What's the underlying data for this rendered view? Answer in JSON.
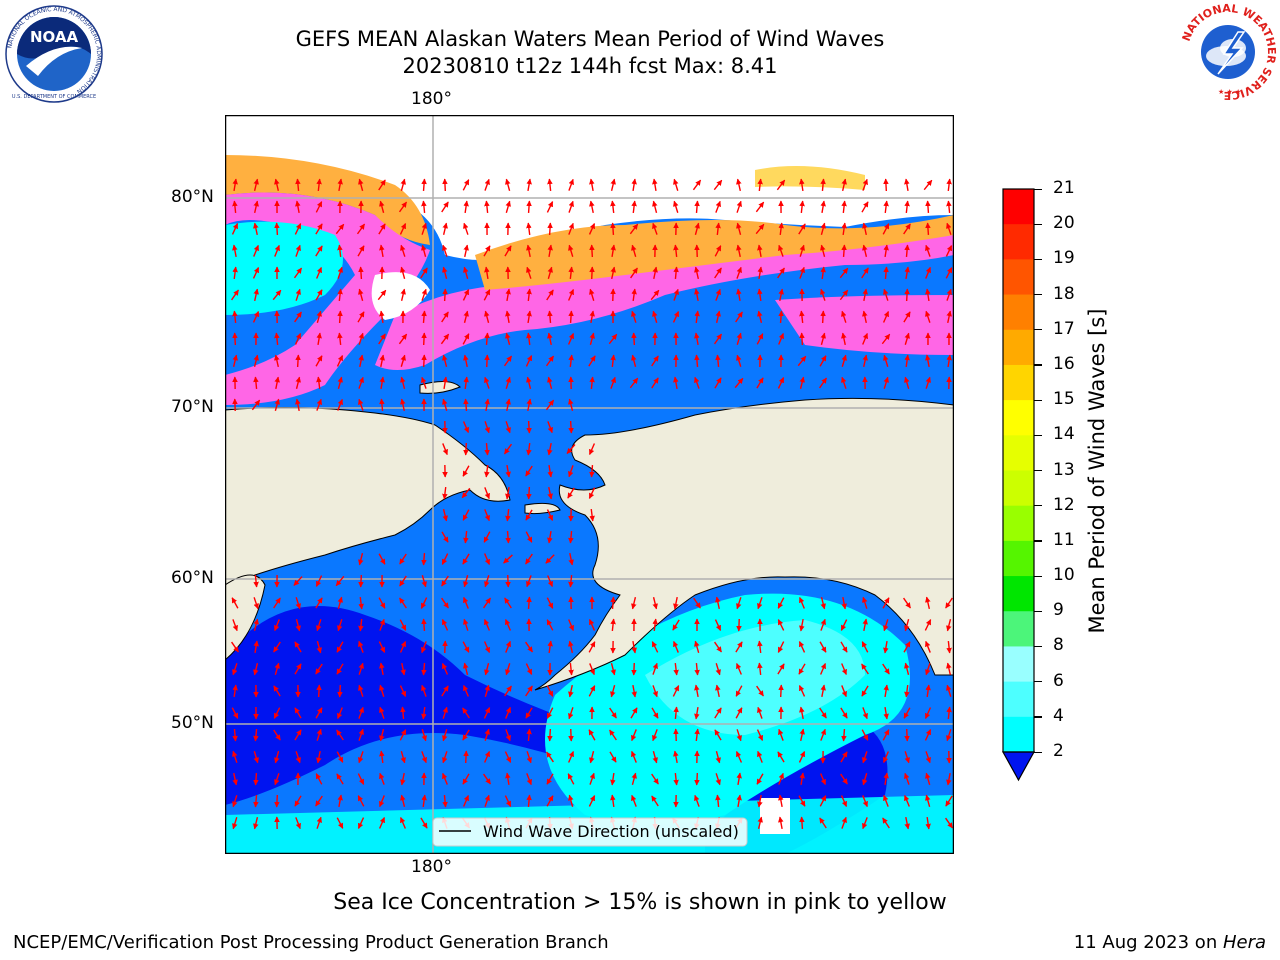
{
  "header": {
    "title_line1": "GEFS MEAN Alaskan Waters Mean Period of Wind Waves",
    "title_line2": "20230810 t12z 144h fcst   Max: 8.41"
  },
  "logos": {
    "left": {
      "name": "NOAA",
      "ring_text": "NATIONAL OCEANIC AND ATMOSPHERIC ADMINISTRATION",
      "bottom_text": "U.S. DEPARTMENT OF COMMERCE"
    },
    "right": {
      "ring_text": "NATIONAL WEATHER SERVICE"
    }
  },
  "map": {
    "grid_labels": {
      "lon_top": "180°",
      "lon_bottom": "180°",
      "lat": [
        "80°N",
        "70°N",
        "60°N",
        "50°N"
      ]
    },
    "legend_label": "Wind Wave Direction (unscaled)",
    "colors": {
      "land": "#efeddc",
      "sea_low": "#0a78ff",
      "sea_deep": "#0014f0",
      "sea_cyan": "#00ffff",
      "sea_light": "#4dffff",
      "ice_pink": "#ff66e6",
      "ice_orange": "#ffb040",
      "ice_yellow": "#ffd95e",
      "arrow": "#ff0000"
    }
  },
  "colorbar": {
    "label": "Mean Period of Wind Waves [s]",
    "ticks": [
      "21",
      "20",
      "19",
      "18",
      "17",
      "16",
      "15",
      "14",
      "13",
      "12",
      "11",
      "10",
      "9",
      "8",
      "6",
      "4",
      "2"
    ],
    "colors": [
      "#ff0000",
      "#ff2a00",
      "#ff5500",
      "#ff8000",
      "#ffaa00",
      "#ffd500",
      "#ffff00",
      "#e6ff00",
      "#ccff00",
      "#99ff00",
      "#55f500",
      "#00e600",
      "#4cf57a",
      "#99ffff",
      "#4dffff",
      "#00ffff",
      "#0a78ff"
    ],
    "under_color": "#0014f0"
  },
  "note": "Sea Ice Concentration > 15% is shown in pink to yellow",
  "footer": {
    "left": "NCEP/EMC/Verification Post Processing Product Generation Branch",
    "right_date": "11 Aug 2023 on ",
    "right_host": "Hera"
  }
}
